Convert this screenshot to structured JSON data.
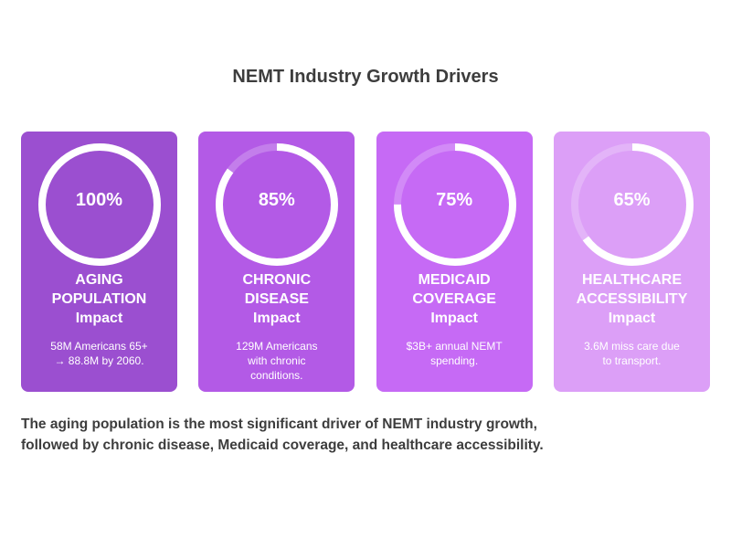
{
  "title": "NEMT Industry Growth Drivers",
  "summary_lines": [
    "The aging population is the most significant driver of NEMT industry growth,",
    "followed by chronic disease, Medicaid coverage, and healthcare accessibility."
  ],
  "chart_data": {
    "type": "pie",
    "title": "NEMT Industry Growth Drivers",
    "categories": [
      "AGING POPULATION",
      "CHRONIC DISEASE",
      "MEDICAID COVERAGE",
      "HEALTHCARE ACCESSIBILITY"
    ],
    "values": [
      100,
      85,
      75,
      65
    ],
    "unit": "%",
    "items": [
      {
        "percent": 100,
        "value_label": "100%",
        "label_lines": [
          "AGING",
          "POPULATION",
          "Impact"
        ],
        "desc_lines": [
          "58M Americans 65+",
          "→ 88.8M by 2060."
        ],
        "color": "#9b4fd0"
      },
      {
        "percent": 85,
        "value_label": "85%",
        "label_lines": [
          "CHRONIC",
          "DISEASE",
          "Impact"
        ],
        "desc_lines": [
          "129M Americans",
          "with chronic",
          "conditions."
        ],
        "color": "#b35ae6"
      },
      {
        "percent": 75,
        "value_label": "75%",
        "label_lines": [
          "MEDICAID",
          "COVERAGE",
          "Impact"
        ],
        "desc_lines": [
          "$3B+ annual NEMT",
          "spending."
        ],
        "color": "#c66af5"
      },
      {
        "percent": 65,
        "value_label": "65%",
        "label_lines": [
          "HEALTHCARE",
          "ACCESSIBILITY",
          "Impact"
        ],
        "desc_lines": [
          "3.6M miss care due",
          "to transport."
        ],
        "color": "#dc9ff7"
      }
    ]
  }
}
